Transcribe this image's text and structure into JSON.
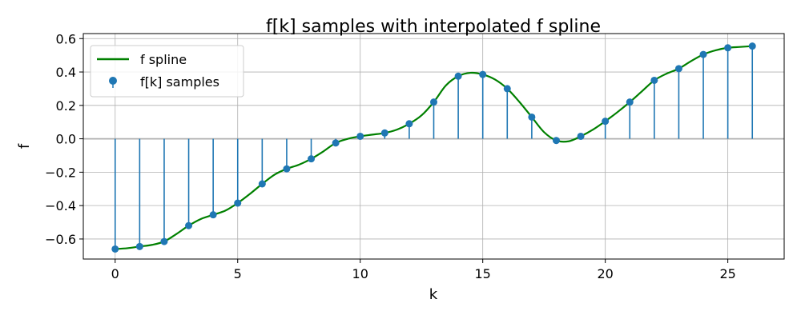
{
  "chart_data": {
    "type": "stem",
    "title": "f[k] samples with interpolated f spline",
    "xlabel": "k",
    "ylabel": "f",
    "xlim": [
      -1.3,
      27.3
    ],
    "ylim": [
      -0.72,
      0.63
    ],
    "xticks": [
      0,
      5,
      10,
      15,
      20,
      25
    ],
    "yticks": [
      -0.6,
      -0.4,
      -0.2,
      0.0,
      0.2,
      0.4,
      0.6
    ],
    "ytick_labels": [
      "−0.6",
      "−0.4",
      "−0.2",
      "0.0",
      "0.2",
      "0.4",
      "0.6"
    ],
    "grid": true,
    "legend_position": "top-left",
    "colors": {
      "spline": "#008000",
      "samples": "#1f77b4",
      "grid": "#b0b0b0",
      "baseline": "#b0b0b0"
    },
    "series": [
      {
        "name": "f spline",
        "kind": "line",
        "x": [
          0,
          0.5,
          1,
          1.5,
          2,
          2.5,
          3,
          3.5,
          4,
          4.5,
          5,
          5.5,
          6,
          6.5,
          7,
          7.5,
          8,
          8.5,
          9,
          9.5,
          10,
          10.5,
          11,
          11.5,
          12,
          12.5,
          13,
          13.5,
          14,
          14.5,
          15,
          15.5,
          16,
          16.5,
          17,
          17.5,
          18,
          18.5,
          19,
          19.5,
          20,
          20.5,
          21,
          21.5,
          22,
          22.5,
          23,
          23.5,
          24,
          24.5,
          25,
          25.5,
          26
        ],
        "y": [
          -0.66,
          -0.655,
          -0.645,
          -0.635,
          -0.615,
          -0.57,
          -0.52,
          -0.48,
          -0.455,
          -0.43,
          -0.385,
          -0.33,
          -0.27,
          -0.215,
          -0.18,
          -0.155,
          -0.12,
          -0.075,
          -0.025,
          0.0,
          0.015,
          0.025,
          0.035,
          0.055,
          0.09,
          0.14,
          0.22,
          0.32,
          0.375,
          0.395,
          0.385,
          0.355,
          0.3,
          0.22,
          0.13,
          0.04,
          -0.01,
          -0.015,
          0.015,
          0.055,
          0.105,
          0.16,
          0.22,
          0.285,
          0.35,
          0.39,
          0.42,
          0.465,
          0.505,
          0.53,
          0.545,
          0.55,
          0.555
        ]
      },
      {
        "name": "f[k] samples",
        "kind": "stem",
        "x": [
          0,
          1,
          2,
          3,
          4,
          5,
          6,
          7,
          8,
          9,
          10,
          11,
          12,
          13,
          14,
          15,
          16,
          17,
          18,
          19,
          20,
          21,
          22,
          23,
          24,
          25,
          26
        ],
        "y": [
          -0.66,
          -0.645,
          -0.615,
          -0.52,
          -0.455,
          -0.385,
          -0.27,
          -0.18,
          -0.12,
          -0.025,
          0.015,
          0.035,
          0.09,
          0.22,
          0.375,
          0.385,
          0.3,
          0.13,
          -0.01,
          0.015,
          0.105,
          0.22,
          0.35,
          0.42,
          0.505,
          0.545,
          0.555
        ]
      }
    ]
  }
}
